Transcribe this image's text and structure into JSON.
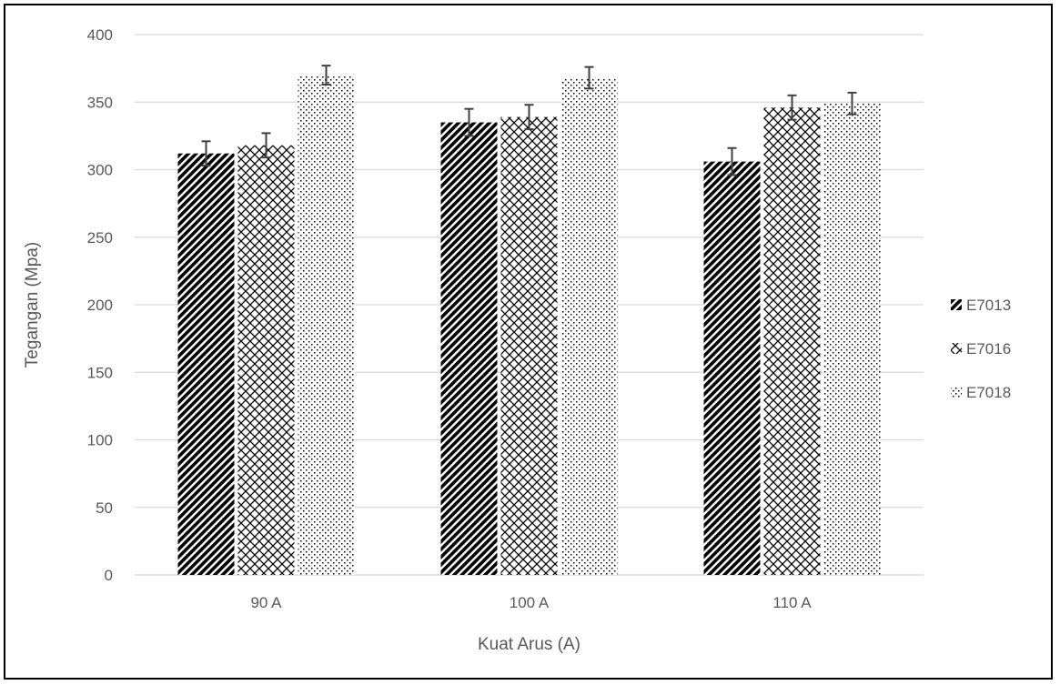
{
  "chart_data": {
    "type": "bar",
    "title": "",
    "xlabel": "Kuat Arus (A)",
    "ylabel": "Tegangan (Mpa)",
    "ylim": [
      0,
      400
    ],
    "yticks": [
      0,
      50,
      100,
      150,
      200,
      250,
      300,
      350,
      400
    ],
    "categories": [
      "90 A",
      "100 A",
      "110 A"
    ],
    "series": [
      {
        "name": "E7013",
        "values": [
          312,
          335,
          306
        ],
        "errors": [
          9,
          10,
          10
        ],
        "pattern": "diagonal"
      },
      {
        "name": "E7016",
        "values": [
          318,
          339,
          346
        ],
        "errors": [
          9,
          9,
          9
        ],
        "pattern": "crosshatch"
      },
      {
        "name": "E7018",
        "values": [
          370,
          368,
          349
        ],
        "errors": [
          7,
          8,
          8
        ],
        "pattern": "dots"
      }
    ],
    "grid": true,
    "legend_position": "right",
    "colors": {
      "grid": "#d9d9d9",
      "text": "#595959",
      "bar": "#000000",
      "error": "#404040"
    }
  }
}
